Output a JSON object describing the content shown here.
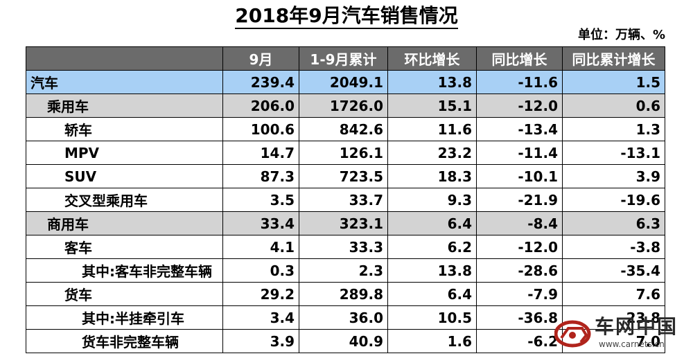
{
  "title": "2018年9月汽车销售情况",
  "unit": "单位：万辆、%",
  "headers": [
    "",
    "9月",
    "1-9月累计",
    "环比增长",
    "同比增长",
    "同比累计增长"
  ],
  "rows": [
    {
      "name": "汽车",
      "values": [
        "239.4",
        "2049.1",
        "13.8",
        "-11.6",
        "1.5"
      ]
    },
    {
      "name": "乘用车",
      "values": [
        "206.0",
        "1726.0",
        "15.1",
        "-12.0",
        "0.6"
      ]
    },
    {
      "name": "轿车",
      "values": [
        "100.6",
        "842.6",
        "11.6",
        "-13.4",
        "1.3"
      ]
    },
    {
      "name": "MPV",
      "values": [
        "14.7",
        "126.1",
        "23.2",
        "-11.4",
        "-13.1"
      ]
    },
    {
      "name": "SUV",
      "values": [
        "87.3",
        "723.5",
        "18.3",
        "-10.1",
        "3.9"
      ]
    },
    {
      "name": "交叉型乘用车",
      "values": [
        "3.5",
        "33.7",
        "9.3",
        "-21.9",
        "-19.6"
      ]
    },
    {
      "name": "商用车",
      "values": [
        "33.4",
        "323.1",
        "6.4",
        "-8.4",
        "6.3"
      ]
    },
    {
      "name": "客车",
      "values": [
        "4.1",
        "33.3",
        "6.2",
        "-12.0",
        "-3.8"
      ]
    },
    {
      "name": "其中:客车非完整车辆",
      "values": [
        "0.3",
        "2.3",
        "13.8",
        "-28.6",
        "-35.4"
      ]
    },
    {
      "name": "货车",
      "values": [
        "29.2",
        "289.8",
        "6.4",
        "-7.9",
        "7.6"
      ]
    },
    {
      "name": "其中:半挂牵引车",
      "values": [
        "3.4",
        "36.0",
        "10.5",
        "-36.8",
        "-23.8"
      ]
    },
    {
      "name": "货车非完整车辆",
      "values": [
        "3.9",
        "40.9",
        "1.6",
        "-6.2",
        "7.0"
      ]
    }
  ],
  "watermark": {
    "name": "车网中国",
    "url": "www.carnets.cn",
    "logo_icon": "car-logo-icon"
  },
  "colors": {
    "header_bg": "#6b6b6b",
    "highlight": "#a8d0f5",
    "subtotal": "#d3d3d3"
  }
}
